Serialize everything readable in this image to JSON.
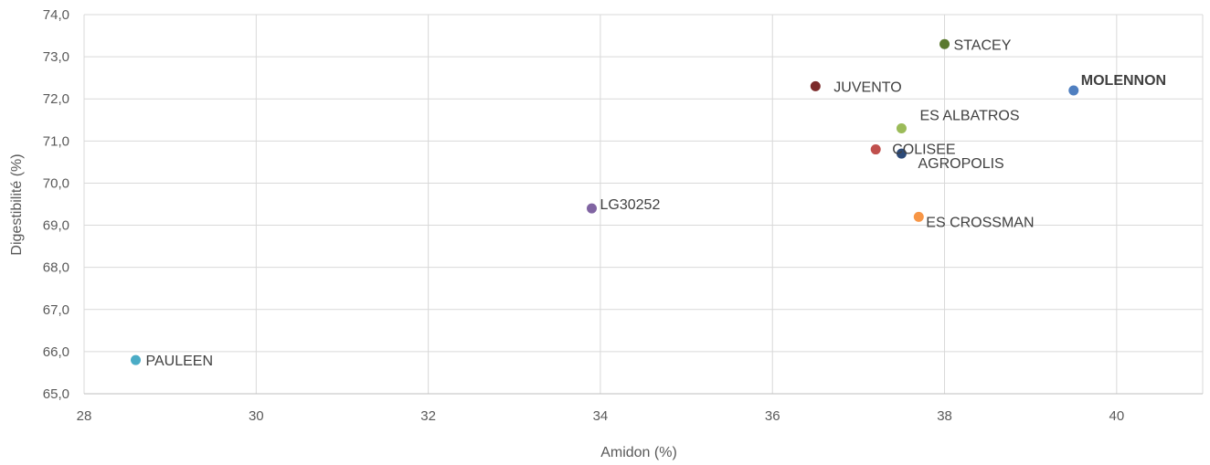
{
  "chart_data": {
    "type": "scatter",
    "xlabel": "Amidon (%)",
    "ylabel": "Digestibilité (%)",
    "xlim": [
      28,
      41
    ],
    "ylim": [
      65,
      74
    ],
    "xticks": [
      "28",
      "30",
      "32",
      "34",
      "36",
      "38",
      "40"
    ],
    "yticks": [
      "65,0",
      "66,0",
      "67,0",
      "68,0",
      "69,0",
      "70,0",
      "71,0",
      "72,0",
      "73,0",
      "74,0"
    ],
    "grid": true,
    "points": [
      {
        "label": "STACEY",
        "x": 38.0,
        "y": 73.3,
        "color": "#5b7a2e",
        "label_color": "#404040",
        "highlight": false
      },
      {
        "label": "JUVENTO",
        "x": 36.5,
        "y": 72.3,
        "color": "#7b2a2a",
        "label_color": "#404040",
        "highlight": false
      },
      {
        "label": "MOLENNON",
        "x": 39.5,
        "y": 72.2,
        "color": "#4f7fc0",
        "label_color": "#92d050",
        "highlight": true
      },
      {
        "label": "ES ALBATROS",
        "x": 37.5,
        "y": 71.3,
        "color": "#9bbb59",
        "label_color": "#404040",
        "highlight": false
      },
      {
        "label": "COLISEE",
        "x": 37.2,
        "y": 70.8,
        "color": "#c0504d",
        "label_color": "#404040",
        "highlight": false
      },
      {
        "label": "AGROPOLIS",
        "x": 37.5,
        "y": 70.7,
        "color": "#2c4a78",
        "label_color": "#404040",
        "highlight": false
      },
      {
        "label": "LG30252",
        "x": 33.9,
        "y": 69.4,
        "color": "#8064a2",
        "label_color": "#404040",
        "highlight": false
      },
      {
        "label": "ES CROSSMAN",
        "x": 37.7,
        "y": 69.2,
        "color": "#f79646",
        "label_color": "#404040",
        "highlight": false
      },
      {
        "label": "PAULEEN",
        "x": 28.6,
        "y": 65.8,
        "color": "#4bacc6",
        "label_color": "#404040",
        "highlight": false
      }
    ]
  }
}
